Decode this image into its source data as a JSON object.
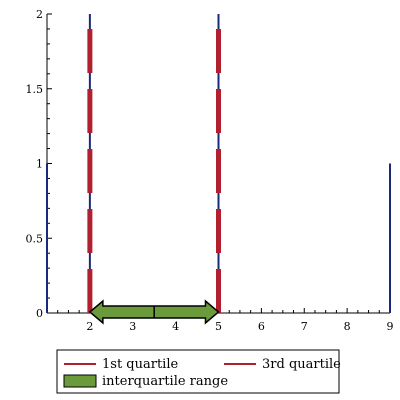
{
  "chart_data": {
    "type": "line",
    "xlim": [
      1,
      9
    ],
    "ylim": [
      0,
      2
    ],
    "x_ticks": [
      2,
      3,
      4,
      5,
      6,
      7,
      8,
      9
    ],
    "y_ticks": [
      0,
      0.5,
      1,
      1.5,
      2
    ],
    "x_tick_labels": [
      "2",
      "3",
      "4",
      "5",
      "6",
      "7",
      "8",
      "9"
    ],
    "y_tick_labels": [
      "0",
      "0.5",
      "1",
      "1.5",
      "2"
    ],
    "grid": false,
    "data_lines": [
      {
        "x": 1,
        "y0": 0,
        "y1": 1
      },
      {
        "x": 2,
        "y0": 0,
        "y1": 2
      },
      {
        "x": 5,
        "y0": 0,
        "y1": 2
      },
      {
        "x": 9,
        "y0": 0,
        "y1": 1
      }
    ],
    "series": [
      {
        "name": "1st quartile",
        "kind": "dashed-vline",
        "x": 2,
        "y0": 0,
        "y1": 2,
        "color": "#b22030"
      },
      {
        "name": "3rd quartile",
        "kind": "dashed-vline",
        "x": 5,
        "y0": 0,
        "y1": 2,
        "color": "#b22030"
      },
      {
        "name": "interquartile range",
        "kind": "double-arrow",
        "x_start": 2,
        "x_end": 5,
        "y": 0,
        "color": "#6b9a3a"
      }
    ],
    "legend": {
      "placement": "bottom",
      "entries": [
        "1st quartile",
        "3rd quartile",
        "interquartile range"
      ]
    },
    "colors": {
      "data_line": "#1a2a7a",
      "quartile": "#b22030",
      "iqr_fill": "#6b9a3a",
      "axis": "#000000"
    }
  }
}
